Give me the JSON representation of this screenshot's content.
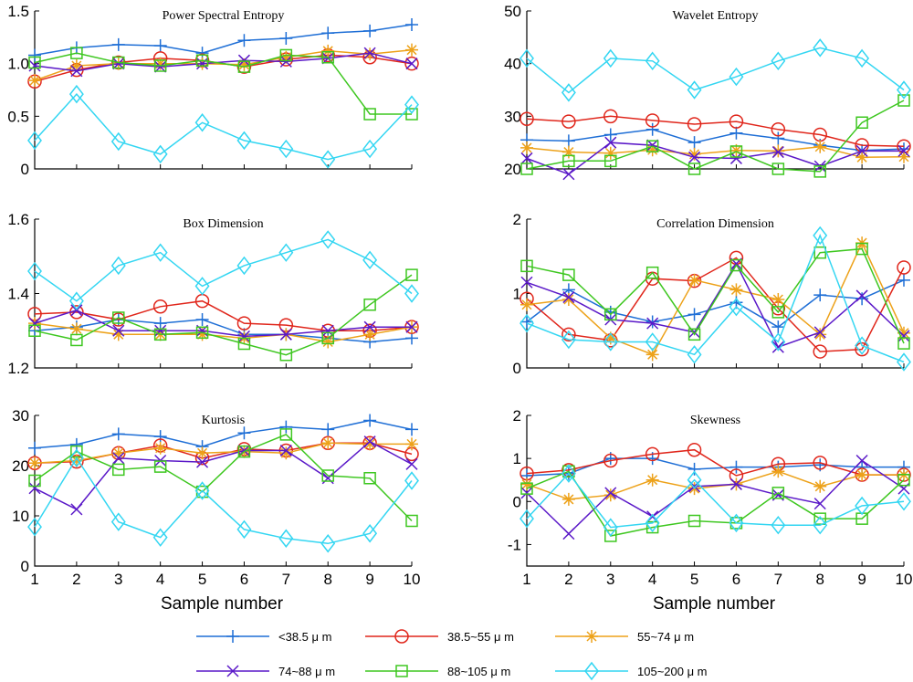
{
  "figure": {
    "xlabel": "Sample number",
    "legend": [
      {
        "label": "<38.5 μ m",
        "color": "#1f6fd6",
        "marker": "plus"
      },
      {
        "label": "38.5~55 μ m",
        "color": "#e0261b",
        "marker": "circle"
      },
      {
        "label": "55~74 μ m",
        "color": "#eda21a",
        "marker": "star"
      },
      {
        "label": "74~88 μ m",
        "color": "#5a18c8",
        "marker": "x"
      },
      {
        "label": "88~105 μ m",
        "color": "#3ec720",
        "marker": "square"
      },
      {
        "label": "105~200 μ m",
        "color": "#33d6f2",
        "marker": "diamond"
      }
    ]
  },
  "chart_data": [
    {
      "type": "line",
      "title": "Power Spectral Entropy",
      "x": [
        1,
        2,
        3,
        4,
        5,
        6,
        7,
        8,
        9,
        10
      ],
      "ylim": [
        0,
        1.5
      ],
      "yticks": [
        "0",
        "0.5",
        "1.0",
        "1.5"
      ],
      "ytick_values": [
        0,
        0.5,
        1.0,
        1.5
      ],
      "xticks": [],
      "series": [
        {
          "name": "<38.5 μ m",
          "values": [
            1.08,
            1.15,
            1.18,
            1.17,
            1.1,
            1.22,
            1.24,
            1.29,
            1.31,
            1.37
          ]
        },
        {
          "name": "38.5~55 μ m",
          "values": [
            0.83,
            0.94,
            1.01,
            1.05,
            1.03,
            0.97,
            1.04,
            1.08,
            1.06,
            1.0
          ]
        },
        {
          "name": "55~74 μ m",
          "values": [
            0.84,
            0.98,
            1.0,
            1.0,
            1.0,
            0.99,
            1.06,
            1.12,
            1.09,
            1.13
          ]
        },
        {
          "name": "74~88 μ m",
          "values": [
            0.98,
            0.93,
            1.0,
            0.97,
            1.0,
            1.03,
            1.02,
            1.05,
            1.1,
            1.0
          ]
        },
        {
          "name": "88~105 μ m",
          "values": [
            1.01,
            1.1,
            1.01,
            0.98,
            1.03,
            0.97,
            1.08,
            1.06,
            0.52,
            0.52
          ]
        },
        {
          "name": "105~200 μ m",
          "values": [
            0.27,
            0.71,
            0.26,
            0.14,
            0.44,
            0.27,
            0.19,
            0.09,
            0.19,
            0.61
          ]
        }
      ]
    },
    {
      "type": "line",
      "title": "Wavelet Entropy",
      "x": [
        1,
        2,
        3,
        4,
        5,
        6,
        7,
        8,
        9,
        10
      ],
      "ylim": [
        20,
        50
      ],
      "yticks": [
        "20",
        "30",
        "40",
        "50"
      ],
      "ytick_values": [
        20,
        30,
        40,
        50
      ],
      "xticks": [],
      "series": [
        {
          "name": "<38.5 μ m",
          "values": [
            25.5,
            25.3,
            26.5,
            27.5,
            25.0,
            26.8,
            25.8,
            24.5,
            23.5,
            23.8
          ]
        },
        {
          "name": "38.5~55 μ m",
          "values": [
            29.5,
            29.0,
            30.0,
            29.2,
            28.5,
            29.0,
            27.5,
            26.5,
            24.5,
            24.3
          ]
        },
        {
          "name": "55~74 μ m",
          "values": [
            24.0,
            23.2,
            23.0,
            23.6,
            22.8,
            23.5,
            23.4,
            24.2,
            22.2,
            22.3
          ]
        },
        {
          "name": "74~88 μ m",
          "values": [
            22.0,
            19.0,
            25.0,
            24.5,
            22.2,
            22.0,
            23.2,
            20.5,
            23.4,
            23.4
          ]
        },
        {
          "name": "88~105 μ m",
          "values": [
            20.0,
            21.5,
            21.5,
            24.3,
            20.0,
            23.3,
            20.0,
            19.5,
            28.8,
            33.0
          ]
        },
        {
          "name": "105~200 μ m",
          "values": [
            41.0,
            34.5,
            41.0,
            40.5,
            35.0,
            37.5,
            40.5,
            43.0,
            41.0,
            35.0
          ]
        }
      ]
    },
    {
      "type": "line",
      "title": "Box Dimension",
      "x": [
        1,
        2,
        3,
        4,
        5,
        6,
        7,
        8,
        9,
        10
      ],
      "ylim": [
        1.2,
        1.6
      ],
      "yticks": [
        "1.2",
        "1.4",
        "1.6"
      ],
      "ytick_values": [
        1.2,
        1.4,
        1.6
      ],
      "xticks": [],
      "series": [
        {
          "name": "<38.5 μ m",
          "values": [
            1.3,
            1.31,
            1.33,
            1.32,
            1.33,
            1.29,
            1.29,
            1.28,
            1.27,
            1.28
          ]
        },
        {
          "name": "38.5~55 μ m",
          "values": [
            1.345,
            1.35,
            1.33,
            1.365,
            1.38,
            1.32,
            1.315,
            1.3,
            1.3,
            1.31
          ]
        },
        {
          "name": "55~74 μ m",
          "values": [
            1.32,
            1.305,
            1.29,
            1.29,
            1.29,
            1.28,
            1.29,
            1.27,
            1.29,
            1.31
          ]
        },
        {
          "name": "74~88 μ m",
          "values": [
            1.32,
            1.355,
            1.3,
            1.3,
            1.3,
            1.285,
            1.29,
            1.3,
            1.31,
            1.31
          ]
        },
        {
          "name": "88~105 μ m",
          "values": [
            1.3,
            1.275,
            1.335,
            1.29,
            1.295,
            1.265,
            1.235,
            1.28,
            1.37,
            1.45
          ]
        },
        {
          "name": "105~200 μ m",
          "values": [
            1.46,
            1.38,
            1.475,
            1.51,
            1.42,
            1.475,
            1.51,
            1.545,
            1.49,
            1.4
          ]
        }
      ]
    },
    {
      "type": "line",
      "title": "Correlation Dimension",
      "x": [
        1,
        2,
        3,
        4,
        5,
        6,
        7,
        8,
        9,
        10
      ],
      "ylim": [
        0,
        2
      ],
      "yticks": [
        "0",
        "1",
        "2"
      ],
      "ytick_values": [
        0,
        1,
        2
      ],
      "xticks": [],
      "series": [
        {
          "name": "<38.5 μ m",
          "values": [
            0.62,
            1.05,
            0.75,
            0.62,
            0.72,
            0.88,
            0.55,
            0.98,
            0.93,
            1.18
          ]
        },
        {
          "name": "38.5~55 μ m",
          "values": [
            0.93,
            0.45,
            0.37,
            1.2,
            1.17,
            1.48,
            0.8,
            0.22,
            0.25,
            1.35
          ]
        },
        {
          "name": "55~74 μ m",
          "values": [
            0.85,
            0.92,
            0.4,
            0.18,
            1.18,
            1.05,
            0.92,
            0.45,
            1.68,
            0.47
          ]
        },
        {
          "name": "74~88 μ m",
          "values": [
            1.15,
            0.95,
            0.65,
            0.6,
            0.48,
            1.4,
            0.28,
            0.48,
            0.97,
            0.43
          ]
        },
        {
          "name": "88~105 μ m",
          "values": [
            1.37,
            1.25,
            0.72,
            1.28,
            0.45,
            1.38,
            0.75,
            1.55,
            1.6,
            0.33
          ]
        },
        {
          "name": "105~200 μ m",
          "values": [
            0.6,
            0.38,
            0.35,
            0.35,
            0.18,
            0.82,
            0.35,
            1.78,
            0.3,
            0.08
          ]
        }
      ]
    },
    {
      "type": "line",
      "title": "Kurtosis",
      "x": [
        1,
        2,
        3,
        4,
        5,
        6,
        7,
        8,
        9,
        10
      ],
      "ylim": [
        0,
        30
      ],
      "yticks": [
        "0",
        "10",
        "20",
        "30"
      ],
      "ytick_values": [
        0,
        10,
        20,
        30
      ],
      "xticks": [
        "1",
        "2",
        "3",
        "4",
        "5",
        "6",
        "7",
        "8",
        "9",
        "10"
      ],
      "series": [
        {
          "name": "<38.5 μ m",
          "values": [
            23.5,
            24.2,
            26.3,
            25.8,
            23.8,
            26.5,
            27.7,
            27.2,
            29.0,
            27.2
          ]
        },
        {
          "name": "38.5~55 μ m",
          "values": [
            20.5,
            20.8,
            22.5,
            24.0,
            21.5,
            23.3,
            23.0,
            24.5,
            24.5,
            22.3
          ]
        },
        {
          "name": "55~74 μ m",
          "values": [
            20.5,
            21.0,
            22.5,
            23.5,
            22.5,
            22.8,
            22.5,
            24.5,
            24.3,
            24.3
          ]
        },
        {
          "name": "74~88 μ m",
          "values": [
            15.5,
            11.3,
            21.5,
            21.0,
            20.7,
            23.0,
            23.0,
            17.5,
            24.8,
            20.3
          ]
        },
        {
          "name": "88~105 μ m",
          "values": [
            17.0,
            22.8,
            19.2,
            19.8,
            14.8,
            22.8,
            26.2,
            18.0,
            17.5,
            9.0
          ]
        },
        {
          "name": "105~200 μ m",
          "values": [
            7.8,
            21.5,
            8.8,
            5.7,
            15.0,
            7.3,
            5.5,
            4.5,
            6.5,
            17.0
          ]
        }
      ]
    },
    {
      "type": "line",
      "title": "Skewness",
      "x": [
        1,
        2,
        3,
        4,
        5,
        6,
        7,
        8,
        9,
        10
      ],
      "ylim": [
        -1.5,
        2
      ],
      "yticks": [
        "-1",
        "0",
        "1",
        "2"
      ],
      "ytick_values": [
        -1,
        0,
        1,
        2
      ],
      "xticks": [
        "1",
        "2",
        "3",
        "4",
        "5",
        "6",
        "7",
        "8",
        "9",
        "10"
      ],
      "series": [
        {
          "name": "<38.5 μ m",
          "values": [
            0.6,
            0.65,
            1.0,
            1.0,
            0.75,
            0.8,
            0.8,
            0.85,
            0.8,
            0.8
          ]
        },
        {
          "name": "38.5~55 μ m",
          "values": [
            0.65,
            0.73,
            0.95,
            1.1,
            1.2,
            0.6,
            0.87,
            0.9,
            0.62,
            0.62
          ]
        },
        {
          "name": "55~74 μ m",
          "values": [
            0.4,
            0.05,
            0.15,
            0.5,
            0.3,
            0.4,
            0.7,
            0.35,
            0.62,
            0.62
          ]
        },
        {
          "name": "74~88 μ m",
          "values": [
            0.2,
            -0.75,
            0.2,
            -0.35,
            0.35,
            0.4,
            0.15,
            -0.05,
            0.95,
            0.3
          ]
        },
        {
          "name": "88~105 μ m",
          "values": [
            0.3,
            0.7,
            -0.8,
            -0.6,
            -0.45,
            -0.5,
            0.2,
            -0.4,
            -0.4,
            0.5
          ]
        },
        {
          "name": "105~200 μ m",
          "values": [
            -0.4,
            0.65,
            -0.6,
            -0.5,
            0.5,
            -0.5,
            -0.55,
            -0.55,
            -0.1,
            0.0
          ]
        }
      ]
    }
  ]
}
